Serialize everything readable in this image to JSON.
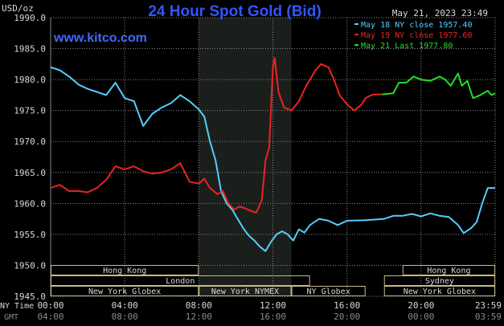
{
  "header": {
    "title": "24 Hour Spot Gold (Bid)",
    "datetime": "May 21, 2023 23:49",
    "watermark": "www.kitco.com",
    "unit": "USD/oz"
  },
  "colors": {
    "background": "#000000",
    "title": "#3355ff",
    "watermark": "#4466ff",
    "grid": "#888888",
    "text": "#d8d8d8",
    "series_cyan": "#55ccff",
    "series_red": "#ee2222",
    "series_green": "#22dd22",
    "ny_shade": "#1b1f1b",
    "session_box": "#c9b98a"
  },
  "legend": [
    {
      "label": "May 18 NY close 1957.40",
      "color": "#55ccff"
    },
    {
      "label": "May 19 NY close 1977.60",
      "color": "#ee2222"
    },
    {
      "label": "May 21 Last 1977.80",
      "color": "#22dd22"
    }
  ],
  "sessions": {
    "row1": [
      {
        "label": "Hong Kong",
        "start": 0.0,
        "end": 8.0
      },
      {
        "label": "Hong Kong",
        "start": 19.0,
        "end": 24.0
      }
    ],
    "row2": [
      {
        "label": "London",
        "start": 0.0,
        "end": 14.0
      },
      {
        "label": "Sydney",
        "start": 18.0,
        "end": 24.0
      }
    ],
    "row3": [
      {
        "label": "New York Globex",
        "start": 0.0,
        "end": 8.0
      },
      {
        "label": "New York NYMEX",
        "start": 8.0,
        "end": 13.0
      },
      {
        "label": "NY Globex",
        "start": 13.0,
        "end": 17.0
      },
      {
        "label": "New York Globex",
        "start": 18.0,
        "end": 24.0
      }
    ]
  },
  "time_axis": {
    "ny_label": "NY Time",
    "gmt_label": "GMT",
    "ny_ticks": [
      "00:00",
      "04:00",
      "08:00",
      "12:00",
      "16:00",
      "20:00",
      "23:59"
    ],
    "gmt_ticks": [
      "04:00",
      "08:00",
      "12:00",
      "16:00",
      "20:00",
      "00:00",
      "03:59"
    ]
  },
  "chart_data": {
    "type": "line",
    "title": "24 Hour Spot Gold (Bid)",
    "ylabel": "USD/oz",
    "ylim": [
      1945.0,
      1990.0
    ],
    "yticks": [
      "1990.0",
      "1985.0",
      "1980.0",
      "1975.0",
      "1970.0",
      "1965.0",
      "1960.0",
      "1955.0",
      "1950.0",
      "1945.0"
    ],
    "xlim": [
      0,
      24
    ],
    "x_unit": "NY time (hours)",
    "grid": true,
    "legend_position": "top-right",
    "shaded_region_hours": [
      8.0,
      13.0
    ],
    "series": [
      {
        "name": "May 18 NY close 1957.40",
        "color": "#55ccff",
        "points": [
          [
            0.0,
            1982.0
          ],
          [
            0.5,
            1981.5
          ],
          [
            1.0,
            1980.5
          ],
          [
            1.5,
            1979.2
          ],
          [
            2.0,
            1978.5
          ],
          [
            2.5,
            1978.0
          ],
          [
            3.0,
            1977.5
          ],
          [
            3.5,
            1979.5
          ],
          [
            4.0,
            1977.0
          ],
          [
            4.5,
            1976.5
          ],
          [
            5.0,
            1972.5
          ],
          [
            5.5,
            1974.5
          ],
          [
            6.0,
            1975.5
          ],
          [
            6.5,
            1976.2
          ],
          [
            7.0,
            1977.5
          ],
          [
            7.5,
            1976.5
          ],
          [
            8.0,
            1975.2
          ],
          [
            8.3,
            1974.0
          ],
          [
            8.6,
            1970.0
          ],
          [
            8.9,
            1967.0
          ],
          [
            9.2,
            1962.0
          ],
          [
            9.5,
            1960.0
          ],
          [
            9.8,
            1959.0
          ],
          [
            10.1,
            1957.5
          ],
          [
            10.4,
            1956.0
          ],
          [
            10.7,
            1954.8
          ],
          [
            11.0,
            1954.0
          ],
          [
            11.3,
            1953.0
          ],
          [
            11.6,
            1952.3
          ],
          [
            11.9,
            1953.8
          ],
          [
            12.2,
            1955.0
          ],
          [
            12.5,
            1955.5
          ],
          [
            12.8,
            1955.0
          ],
          [
            13.1,
            1954.0
          ],
          [
            13.4,
            1955.8
          ],
          [
            13.7,
            1955.3
          ],
          [
            14.0,
            1956.5
          ],
          [
            14.5,
            1957.5
          ],
          [
            15.0,
            1957.2
          ],
          [
            15.5,
            1956.5
          ],
          [
            16.0,
            1957.2
          ],
          [
            17.0,
            1957.3
          ],
          [
            18.0,
            1957.5
          ],
          [
            18.5,
            1958.0
          ],
          [
            19.0,
            1958.0
          ],
          [
            19.5,
            1958.3
          ],
          [
            20.0,
            1957.9
          ],
          [
            20.5,
            1958.4
          ],
          [
            21.0,
            1958.0
          ],
          [
            21.5,
            1957.8
          ],
          [
            22.0,
            1956.5
          ],
          [
            22.3,
            1955.2
          ],
          [
            22.7,
            1956.0
          ],
          [
            23.0,
            1957.0
          ],
          [
            23.3,
            1960.0
          ],
          [
            23.6,
            1962.5
          ],
          [
            24.0,
            1962.5
          ]
        ]
      },
      {
        "name": "May 19 NY close 1977.60",
        "color": "#ee2222",
        "points": [
          [
            0.0,
            1962.5
          ],
          [
            0.5,
            1963.0
          ],
          [
            1.0,
            1962.0
          ],
          [
            1.5,
            1962.0
          ],
          [
            2.0,
            1961.8
          ],
          [
            2.5,
            1962.5
          ],
          [
            3.0,
            1963.8
          ],
          [
            3.5,
            1966.0
          ],
          [
            4.0,
            1965.5
          ],
          [
            4.5,
            1966.0
          ],
          [
            5.0,
            1965.2
          ],
          [
            5.5,
            1964.8
          ],
          [
            6.0,
            1965.0
          ],
          [
            6.5,
            1965.5
          ],
          [
            7.0,
            1966.5
          ],
          [
            7.5,
            1963.5
          ],
          [
            8.0,
            1963.2
          ],
          [
            8.3,
            1964.0
          ],
          [
            8.6,
            1962.5
          ],
          [
            9.0,
            1961.5
          ],
          [
            9.3,
            1962.0
          ],
          [
            9.6,
            1960.0
          ],
          [
            9.9,
            1959.0
          ],
          [
            10.2,
            1959.5
          ],
          [
            10.5,
            1959.2
          ],
          [
            10.8,
            1958.8
          ],
          [
            11.1,
            1958.5
          ],
          [
            11.4,
            1960.5
          ],
          [
            11.6,
            1967.0
          ],
          [
            11.8,
            1969.0
          ],
          [
            12.0,
            1982.0
          ],
          [
            12.1,
            1983.5
          ],
          [
            12.3,
            1978.0
          ],
          [
            12.6,
            1975.5
          ],
          [
            13.0,
            1975.0
          ],
          [
            13.4,
            1976.5
          ],
          [
            13.8,
            1979.0
          ],
          [
            14.0,
            1980.0
          ],
          [
            14.3,
            1981.5
          ],
          [
            14.6,
            1982.5
          ],
          [
            15.0,
            1982.0
          ],
          [
            15.3,
            1980.0
          ],
          [
            15.6,
            1977.5
          ],
          [
            16.0,
            1976.0
          ],
          [
            16.4,
            1975.0
          ],
          [
            16.8,
            1976.0
          ],
          [
            17.0,
            1977.0
          ],
          [
            17.4,
            1977.6
          ],
          [
            17.9,
            1977.6
          ]
        ]
      },
      {
        "name": "May 21 Last 1977.80",
        "color": "#22dd22",
        "points": [
          [
            17.9,
            1977.6
          ],
          [
            18.5,
            1977.8
          ],
          [
            18.8,
            1979.5
          ],
          [
            19.2,
            1979.5
          ],
          [
            19.6,
            1980.5
          ],
          [
            20.0,
            1980.0
          ],
          [
            20.5,
            1979.8
          ],
          [
            21.0,
            1980.5
          ],
          [
            21.3,
            1980.0
          ],
          [
            21.6,
            1979.0
          ],
          [
            22.0,
            1981.0
          ],
          [
            22.2,
            1979.0
          ],
          [
            22.5,
            1979.8
          ],
          [
            22.8,
            1977.0
          ],
          [
            23.2,
            1977.5
          ],
          [
            23.6,
            1978.2
          ],
          [
            23.8,
            1977.5
          ],
          [
            24.0,
            1977.8
          ]
        ]
      }
    ]
  }
}
